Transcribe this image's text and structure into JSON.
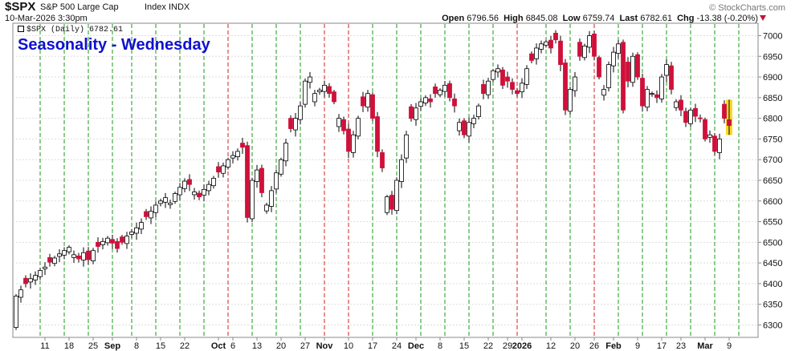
{
  "header": {
    "symbol": "$SPX",
    "description": "S&P 500 Large Cap",
    "index_label": "Index INDX",
    "date": "10-Mar-2026 3:30pm",
    "watermark": "© StockCharts.com",
    "open_label": "Open",
    "open": "6796.56",
    "high_label": "High",
    "high": "6845.08",
    "low_label": "Low",
    "low": "6759.74",
    "last_label": "Last",
    "last": "6782.61",
    "chg_label": "Chg",
    "chg": "-13.38 (-0.20%)"
  },
  "legend": {
    "text": "$SPX (Daily) 6782.61"
  },
  "annotation": "Seasonality - Wednesday",
  "colors": {
    "up": "#ffffff",
    "down": "#d0103a",
    "green_line": "#1a9a1a",
    "red_line": "#d02020",
    "highlight": "#f6d200",
    "title": "#1010d0"
  },
  "chart_data": {
    "type": "candlestick",
    "title": "Seasonality - Wednesday",
    "ylim": [
      6270,
      7030
    ],
    "yticks": [
      6300,
      6350,
      6400,
      6450,
      6500,
      6550,
      6600,
      6650,
      6700,
      6750,
      6800,
      6850,
      6900,
      6950,
      7000
    ],
    "xticks": [
      {
        "label": "11",
        "bold": false,
        "i": 6
      },
      {
        "label": "18",
        "bold": false,
        "i": 11
      },
      {
        "label": "25",
        "bold": false,
        "i": 16
      },
      {
        "label": "Sep",
        "bold": true,
        "i": 20
      },
      {
        "label": "8",
        "bold": false,
        "i": 25
      },
      {
        "label": "15",
        "bold": false,
        "i": 30
      },
      {
        "label": "22",
        "bold": false,
        "i": 35
      },
      {
        "label": "Oct",
        "bold": true,
        "i": 42
      },
      {
        "label": "6",
        "bold": false,
        "i": 45
      },
      {
        "label": "13",
        "bold": false,
        "i": 50
      },
      {
        "label": "20",
        "bold": false,
        "i": 55
      },
      {
        "label": "27",
        "bold": false,
        "i": 60
      },
      {
        "label": "Nov",
        "bold": true,
        "i": 64
      },
      {
        "label": "10",
        "bold": false,
        "i": 69
      },
      {
        "label": "17",
        "bold": false,
        "i": 74
      },
      {
        "label": "24",
        "bold": false,
        "i": 79
      },
      {
        "label": "Dec",
        "bold": true,
        "i": 83
      },
      {
        "label": "8",
        "bold": false,
        "i": 88
      },
      {
        "label": "15",
        "bold": false,
        "i": 93
      },
      {
        "label": "22",
        "bold": false,
        "i": 98
      },
      {
        "label": "29",
        "bold": false,
        "i": 102
      },
      {
        "label": "2026",
        "bold": true,
        "i": 105
      },
      {
        "label": "12",
        "bold": false,
        "i": 111
      },
      {
        "label": "20",
        "bold": false,
        "i": 116
      },
      {
        "label": "26",
        "bold": false,
        "i": 120
      },
      {
        "label": "Feb",
        "bold": true,
        "i": 124
      },
      {
        "label": "9",
        "bold": false,
        "i": 129
      },
      {
        "label": "17",
        "bold": false,
        "i": 134
      },
      {
        "label": "23",
        "bold": false,
        "i": 138
      },
      {
        "label": "Mar",
        "bold": true,
        "i": 143
      },
      {
        "label": "9",
        "bold": false,
        "i": 148
      }
    ],
    "start_value": 6290,
    "closes": [
      6370,
      6385,
      6400,
      6412,
      6420,
      6432,
      6440,
      6452,
      6462,
      6472,
      6480,
      6488,
      6470,
      6460,
      6475,
      6458,
      6480,
      6490,
      6502,
      6510,
      6498,
      6485,
      6500,
      6515,
      6525,
      6535,
      6548,
      6562,
      6575,
      6590,
      6600,
      6608,
      6595,
      6618,
      6633,
      6648,
      6640,
      6622,
      6610,
      6628,
      6640,
      6655,
      6670,
      6685,
      6700,
      6710,
      6720,
      6730,
      6560,
      6650,
      6675,
      6620,
      6590,
      6625,
      6668,
      6700,
      6740,
      6775,
      6800,
      6830,
      6890,
      6900,
      6860,
      6868,
      6880,
      6860,
      6840,
      6800,
      6770,
      6720,
      6760,
      6800,
      6830,
      6860,
      6800,
      6720,
      6680,
      6610,
      6580,
      6650,
      6700,
      6760,
      6800,
      6825,
      6840,
      6850,
      6840,
      6860,
      6868,
      6880,
      6850,
      6830,
      6790,
      6760,
      6790,
      6800,
      6830,
      6860,
      6890,
      6915,
      6920,
      6880,
      6890,
      6870,
      6860,
      6885,
      6920,
      6940,
      6970,
      6980,
      6985,
      6970,
      6990,
      6930,
      6820,
      6870,
      6900,
      6950,
      6975,
      7000,
      6950,
      6900,
      6870,
      6930,
      6960,
      6980,
      6820,
      6890,
      6950,
      6900,
      6830,
      6870,
      6860,
      6850,
      6900,
      6930,
      6870,
      6840,
      6820,
      6790,
      6820,
      6805,
      6800,
      6750,
      6760,
      6720,
      6750,
      6800,
      6783
    ],
    "wednesdays": {
      "green": [
        5,
        10,
        15,
        20,
        24,
        29,
        34,
        39,
        49,
        54,
        59,
        74,
        79,
        84,
        89,
        94,
        99,
        110,
        115,
        125,
        130,
        135,
        140,
        145,
        150
      ],
      "red": [
        44,
        64,
        69,
        104,
        120
      ]
    },
    "last_candle": {
      "open": 6796.56,
      "high": 6845.08,
      "low": 6759.74,
      "close": 6782.61
    }
  }
}
